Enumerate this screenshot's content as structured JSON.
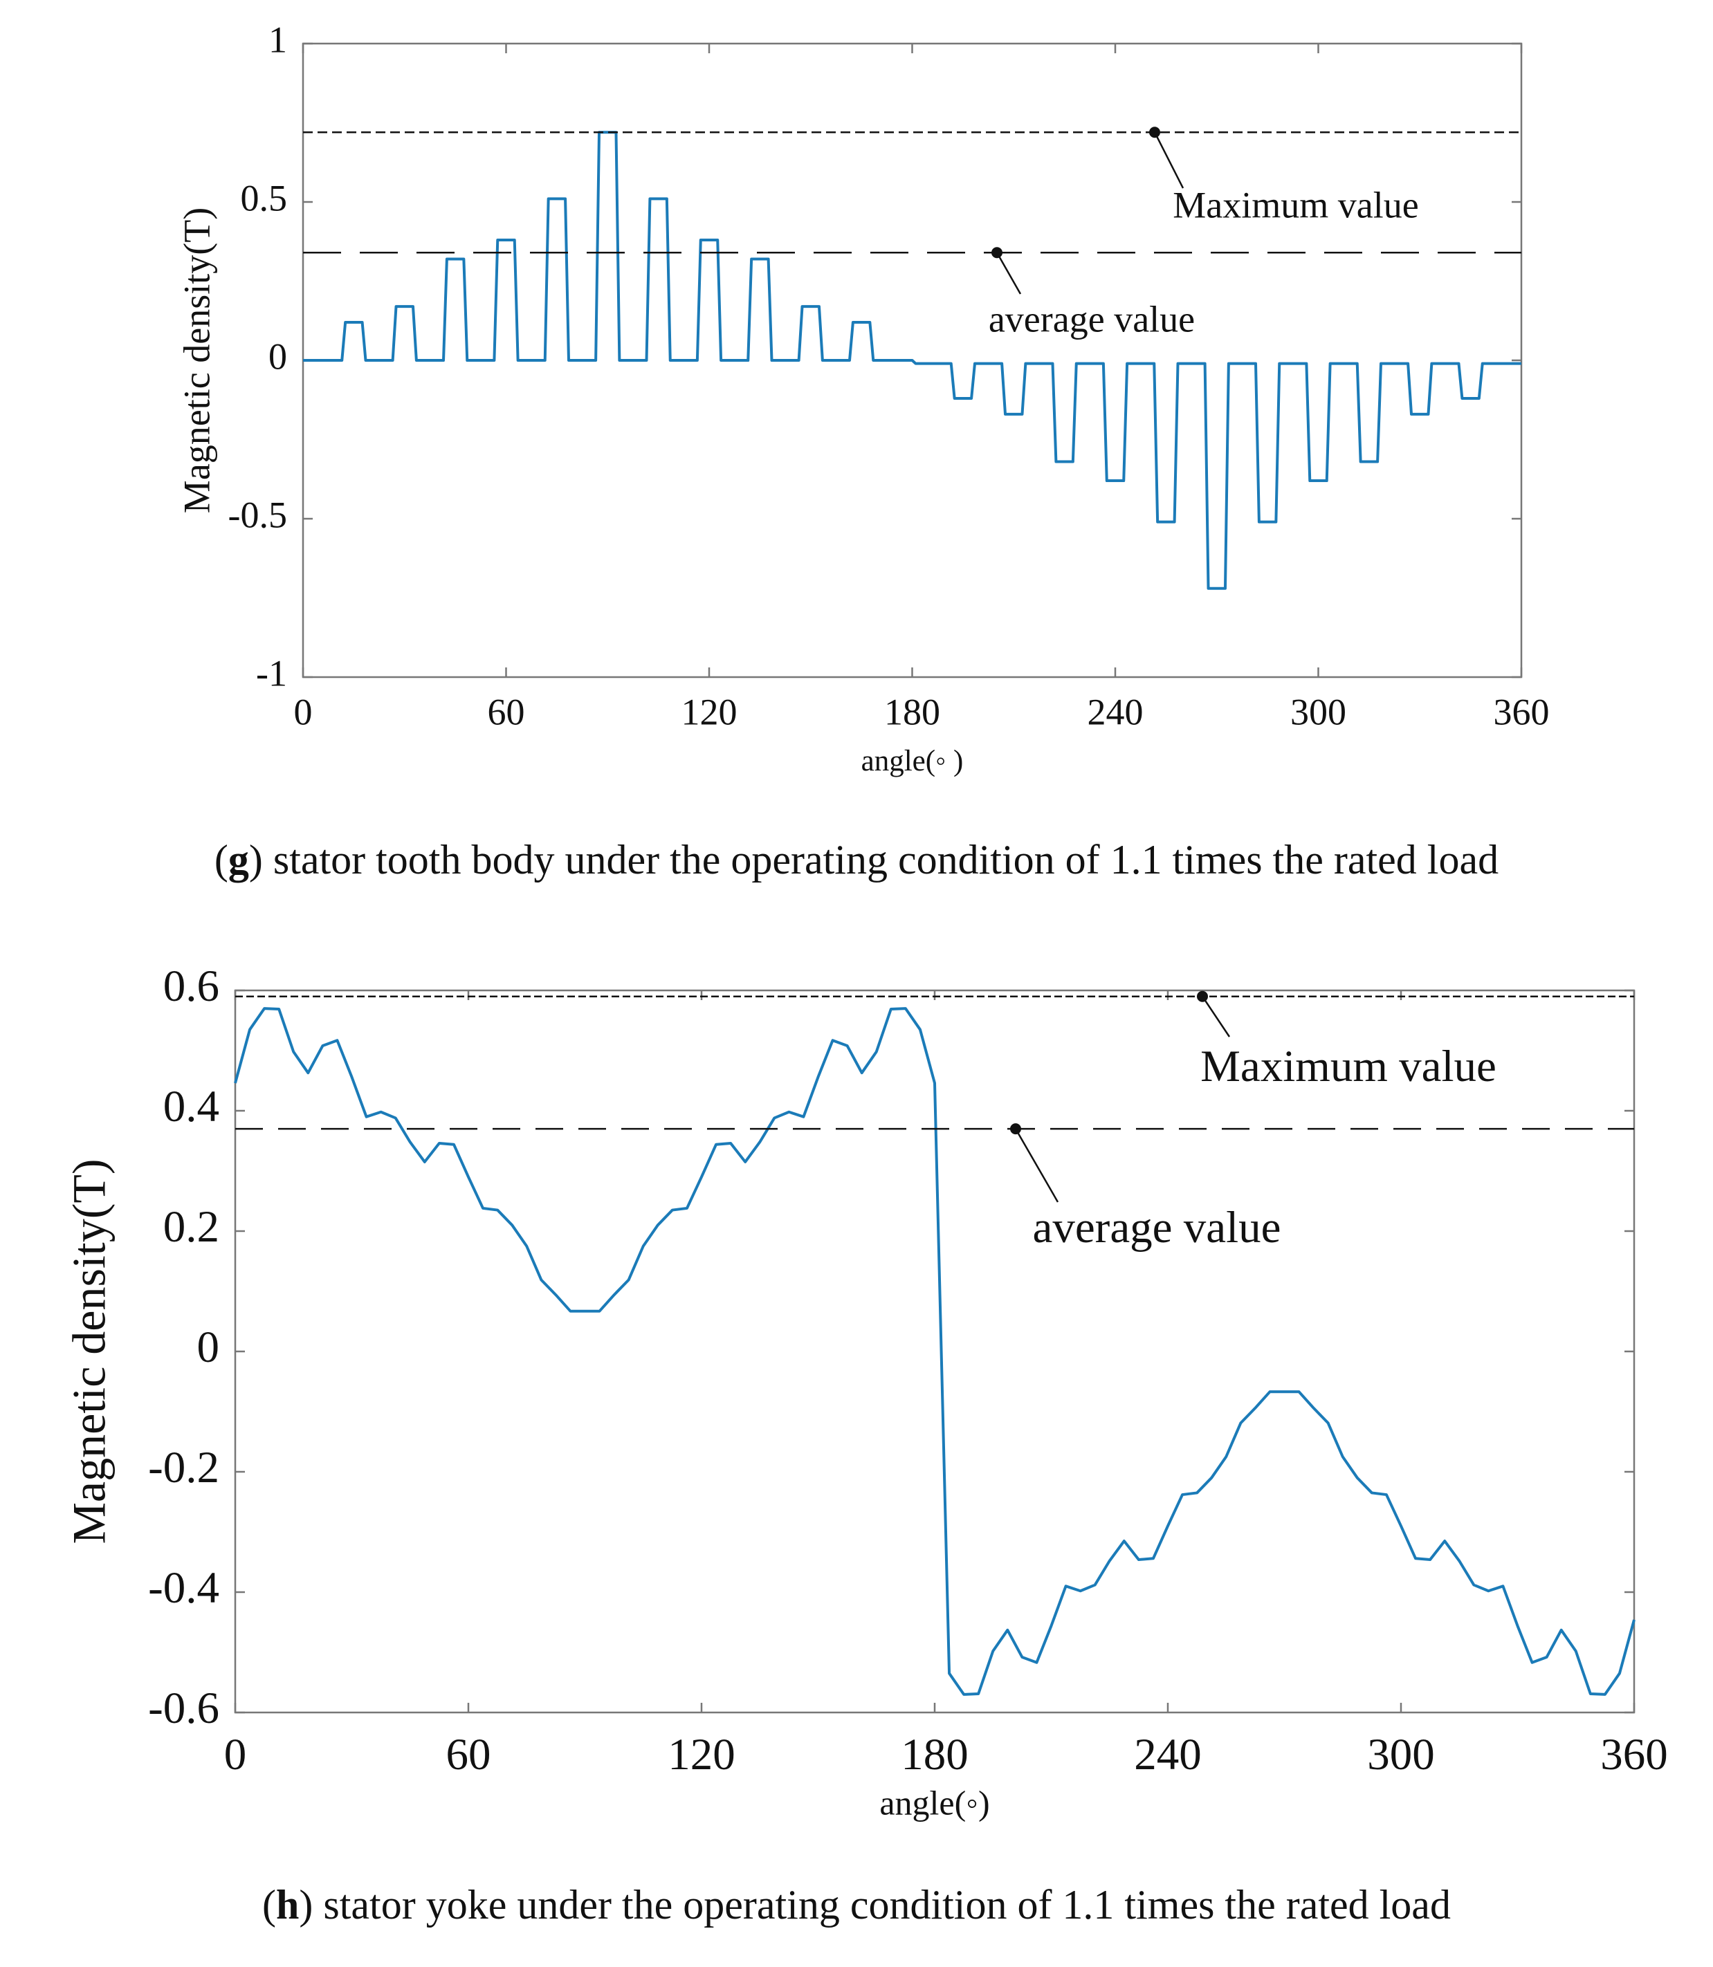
{
  "chart_data": [
    {
      "type": "line",
      "x": [
        0,
        11.5,
        12.5,
        17.5,
        18.5,
        26.5,
        27.5,
        32.5,
        33.5,
        41.5,
        42.5,
        47.5,
        48.5,
        56.5,
        57.5,
        62.5,
        63.5,
        71.5,
        72.5,
        77.5,
        78.5,
        86.5,
        87.5,
        92.5,
        93.5,
        101.5,
        102.5,
        107.5,
        108.5,
        116.5,
        117.5,
        122.5,
        123.5,
        131.5,
        132.5,
        137.5,
        138.5,
        146.5,
        147.5,
        152.5,
        153.5,
        161.5,
        162.5,
        167.5,
        168.5,
        180,
        181,
        191.5,
        192.5,
        197.5,
        198.5,
        206.5,
        207.5,
        212.5,
        213.5,
        221.5,
        222.5,
        227.5,
        228.5,
        236.5,
        237.5,
        242.5,
        243.5,
        251.5,
        252.5,
        257.5,
        258.5,
        266.5,
        267.5,
        272.5,
        273.5,
        281.5,
        282.5,
        287.5,
        288.5,
        296.5,
        297.5,
        302.5,
        303.5,
        311.5,
        312.5,
        317.5,
        318.5,
        326.5,
        327.5,
        332.5,
        333.5,
        341.5,
        342.5,
        347.5,
        348.5,
        360
      ],
      "values": [
        0,
        0,
        0.12,
        0.12,
        0,
        0,
        0.17,
        0.17,
        0,
        0,
        0.32,
        0.32,
        0,
        0,
        0.38,
        0.38,
        0,
        0,
        0.51,
        0.51,
        0,
        0,
        0.72,
        0.72,
        0,
        0,
        0.51,
        0.51,
        0,
        0,
        0.38,
        0.38,
        0,
        0,
        0.32,
        0.32,
        0,
        0,
        0.17,
        0.17,
        0,
        0,
        0.12,
        0.12,
        0,
        0,
        -0.01,
        -0.01,
        -0.12,
        -0.12,
        -0.01,
        -0.01,
        -0.17,
        -0.17,
        -0.01,
        -0.01,
        -0.32,
        -0.32,
        -0.01,
        -0.01,
        -0.38,
        -0.38,
        -0.01,
        -0.01,
        -0.51,
        -0.51,
        -0.01,
        -0.01,
        -0.72,
        -0.72,
        -0.01,
        -0.01,
        -0.51,
        -0.51,
        -0.01,
        -0.01,
        -0.38,
        -0.38,
        -0.01,
        -0.01,
        -0.32,
        -0.32,
        -0.01,
        -0.01,
        -0.17,
        -0.17,
        -0.01,
        -0.01,
        -0.12,
        -0.12,
        -0.01,
        -0.01
      ],
      "color": "#1b7bb8",
      "xlim": [
        0,
        360
      ],
      "xticks": [
        0,
        60,
        120,
        180,
        240,
        300,
        360
      ],
      "ylim": [
        -1,
        1
      ],
      "yticks": [
        -1,
        -0.5,
        0,
        0.5,
        1
      ],
      "y_label": "Magnetic density(T)",
      "x_label": "angle(◦ )",
      "reference_lines": [
        {
          "label": "Maximum value",
          "value": 0.72
        },
        {
          "label": "average value",
          "value": 0.34
        }
      ],
      "caption": [
        "(",
        "g",
        ") stator tooth body under the operating condition of 1.1 times the rated load"
      ]
    },
    {
      "type": "line",
      "x": [
        0,
        3.75,
        7.5,
        11.25,
        15,
        18.75,
        22.5,
        26.25,
        30,
        33.75,
        37.5,
        41.25,
        45,
        48.75,
        52.5,
        56.25,
        60,
        63.75,
        67.5,
        71.25,
        75,
        78.75,
        82.5,
        86.25,
        90,
        93.75,
        97.5,
        101.25,
        105,
        108.75,
        112.5,
        116.25,
        120,
        123.75,
        127.5,
        131.25,
        135,
        138.75,
        142.5,
        146.25,
        150,
        153.75,
        157.5,
        161.25,
        165,
        168.75,
        172.5,
        176.25,
        180,
        183.75,
        187.5,
        191.25,
        195,
        198.75,
        202.5,
        206.25,
        210,
        213.75,
        217.5,
        221.25,
        225,
        228.75,
        232.5,
        236.25,
        240,
        243.75,
        247.5,
        251.25,
        255,
        258.75,
        262.5,
        266.25,
        270,
        273.75,
        277.5,
        281.25,
        285,
        288.75,
        292.5,
        296.25,
        300,
        303.75,
        307.5,
        311.25,
        315,
        318.75,
        322.5,
        326.25,
        330,
        333.75,
        337.5,
        341.25,
        345,
        348.75,
        352.5,
        356.25,
        360
      ],
      "values": [
        0.446,
        0.535,
        0.57,
        0.569,
        0.498,
        0.463,
        0.508,
        0.517,
        0.456,
        0.39,
        0.398,
        0.388,
        0.348,
        0.315,
        0.346,
        0.344,
        0.29,
        0.238,
        0.235,
        0.21,
        0.175,
        0.119,
        0.094,
        0.067,
        0.067,
        0.067,
        0.094,
        0.119,
        0.175,
        0.21,
        0.235,
        0.238,
        0.29,
        0.344,
        0.346,
        0.315,
        0.348,
        0.388,
        0.398,
        0.39,
        0.456,
        0.517,
        0.508,
        0.463,
        0.498,
        0.569,
        0.57,
        0.535,
        0.446,
        -0.535,
        -0.57,
        -0.569,
        -0.498,
        -0.463,
        -0.508,
        -0.517,
        -0.456,
        -0.39,
        -0.398,
        -0.388,
        -0.348,
        -0.315,
        -0.346,
        -0.344,
        -0.29,
        -0.238,
        -0.235,
        -0.21,
        -0.175,
        -0.119,
        -0.094,
        -0.067,
        -0.067,
        -0.067,
        -0.094,
        -0.119,
        -0.175,
        -0.21,
        -0.235,
        -0.238,
        -0.29,
        -0.344,
        -0.346,
        -0.315,
        -0.348,
        -0.388,
        -0.398,
        -0.39,
        -0.456,
        -0.517,
        -0.508,
        -0.463,
        -0.498,
        -0.569,
        -0.57,
        -0.535,
        -0.446
      ],
      "color": "#1b7bb8",
      "xlim": [
        0,
        360
      ],
      "xticks": [
        0,
        60,
        120,
        180,
        240,
        300,
        360
      ],
      "ylim": [
        -0.6,
        0.6
      ],
      "yticks": [
        -0.6,
        -0.4,
        -0.2,
        0,
        0.2,
        0.4,
        0.6
      ],
      "y_label": "Magnetic density(T)",
      "x_label": "angle(◦)",
      "reference_lines": [
        {
          "label": "Maximum value",
          "value": 0.59
        },
        {
          "label": "average value",
          "value": 0.37
        }
      ],
      "caption": [
        "(",
        "h",
        ") stator yoke under the operating condition of 1.1 times the rated load"
      ]
    }
  ]
}
